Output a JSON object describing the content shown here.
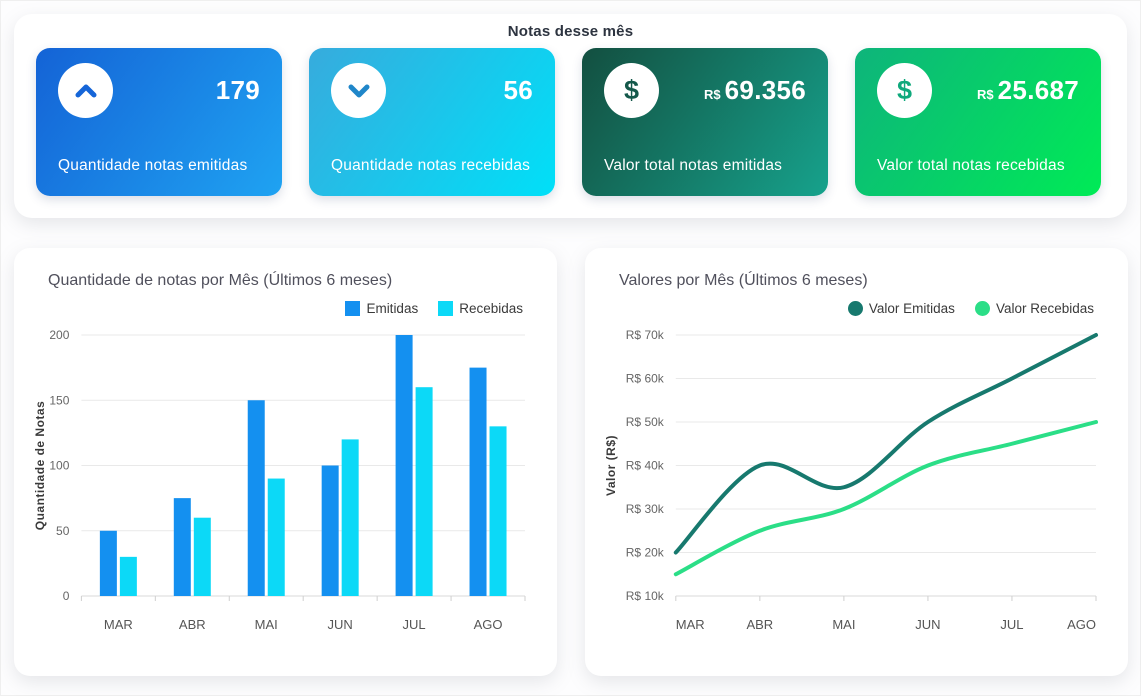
{
  "page": {
    "title": "Notas desse mês"
  },
  "summary_cards": [
    {
      "label": "Quantidade notas emitidas",
      "value": "179",
      "prefix": "",
      "icon": "chevron-up",
      "gradient": [
        "#1463D6",
        "#1FA3F2"
      ],
      "icon_color": "#1565D8"
    },
    {
      "label": "Quantidade notas recebidas",
      "value": "56",
      "prefix": "",
      "icon": "chevron-down",
      "gradient": [
        "#37ABDD",
        "#00E0F8"
      ],
      "icon_color": "#1F86C9"
    },
    {
      "label": "Valor total notas emitidas",
      "value": "69.356",
      "prefix": "R$",
      "icon": "dollar",
      "gradient": [
        "#134F40",
        "#16A28C"
      ],
      "icon_color": "#14584A"
    },
    {
      "label": "Valor total notas recebidas",
      "value": "25.687",
      "prefix": "R$",
      "icon": "dollar",
      "gradient": [
        "#0EB47B",
        "#00EB56"
      ],
      "icon_color": "#0FA97C"
    }
  ],
  "chart_data": [
    {
      "type": "bar",
      "title": "Quantidade de notas por Mês (Últimos 6 meses)",
      "categories": [
        "MAR",
        "ABR",
        "MAI",
        "JUN",
        "JUL",
        "AGO"
      ],
      "series": [
        {
          "name": "Emitidas",
          "color": "#1490F0",
          "values": [
            50,
            75,
            150,
            100,
            200,
            175
          ]
        },
        {
          "name": "Recebidas",
          "color": "#0CD9F7",
          "values": [
            30,
            60,
            90,
            120,
            160,
            130
          ]
        }
      ],
      "xlabel": "",
      "ylabel": "Quantidade de Notas",
      "ylim": [
        0,
        200
      ],
      "yticks": [
        0,
        50,
        100,
        150,
        200
      ],
      "ytick_labels": [
        "0",
        "50",
        "100",
        "150",
        "200"
      ],
      "grid": true,
      "legend_position": "top-right"
    },
    {
      "type": "line",
      "title": "Valores por Mês (Últimos 6 meses)",
      "categories": [
        "MAR",
        "ABR",
        "MAI",
        "JUN",
        "JUL",
        "AGO"
      ],
      "series": [
        {
          "name": "Valor Emitidas",
          "color": "#17796E",
          "values": [
            20000,
            40000,
            35000,
            50000,
            60000,
            70000
          ]
        },
        {
          "name": "Valor Recebidas",
          "color": "#2BDE87",
          "values": [
            15000,
            25000,
            30000,
            40000,
            45000,
            50000
          ]
        }
      ],
      "xlabel": "",
      "ylabel": "Valor (R$)",
      "ylim": [
        10000,
        70000
      ],
      "yticks": [
        10000,
        20000,
        30000,
        40000,
        50000,
        60000,
        70000
      ],
      "ytick_labels": [
        "R$ 10k",
        "R$ 20k",
        "R$ 30k",
        "R$ 40k",
        "R$ 50k",
        "R$ 60k",
        "R$ 70k"
      ],
      "grid": true,
      "legend_position": "top-right"
    }
  ]
}
